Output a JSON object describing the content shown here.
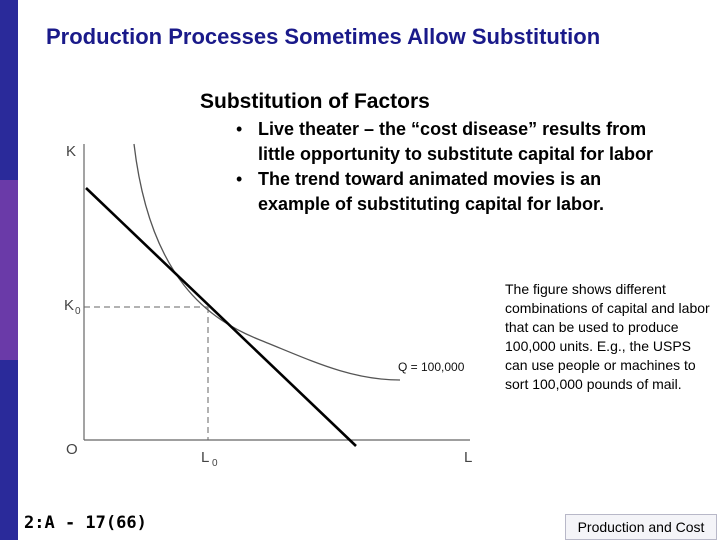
{
  "slide": {
    "title": "Production Processes Sometimes Allow Substitution",
    "subtitle": "Substitution of Factors",
    "bullets": [
      "Live theater – the “cost disease” results from little opportunity to substitute capital for labor",
      "The trend toward animated movies is an example of substituting capital for labor."
    ],
    "note": "The figure shows different combinations of capital and labor that can be used to produce 100,000 units. E.g., the USPS can use people or machines to sort 100,000 pounds of mail.",
    "footer_left": "2:A - 17(66)",
    "footer_right": "Production and Cost",
    "bullet_glyph": "•"
  },
  "diagram": {
    "y_axis_label": "K",
    "x_axis_label": "L",
    "origin_label": "O",
    "k0_main": "K",
    "k0_sub": "0",
    "l0_main": "L",
    "l0_sub": "0",
    "isoquant_label": "Q = 100,000"
  },
  "colors": {
    "title": "#1a1a8a",
    "sidebar_dark": "#2a2a9a",
    "sidebar_purple": "#6a3aa8"
  }
}
